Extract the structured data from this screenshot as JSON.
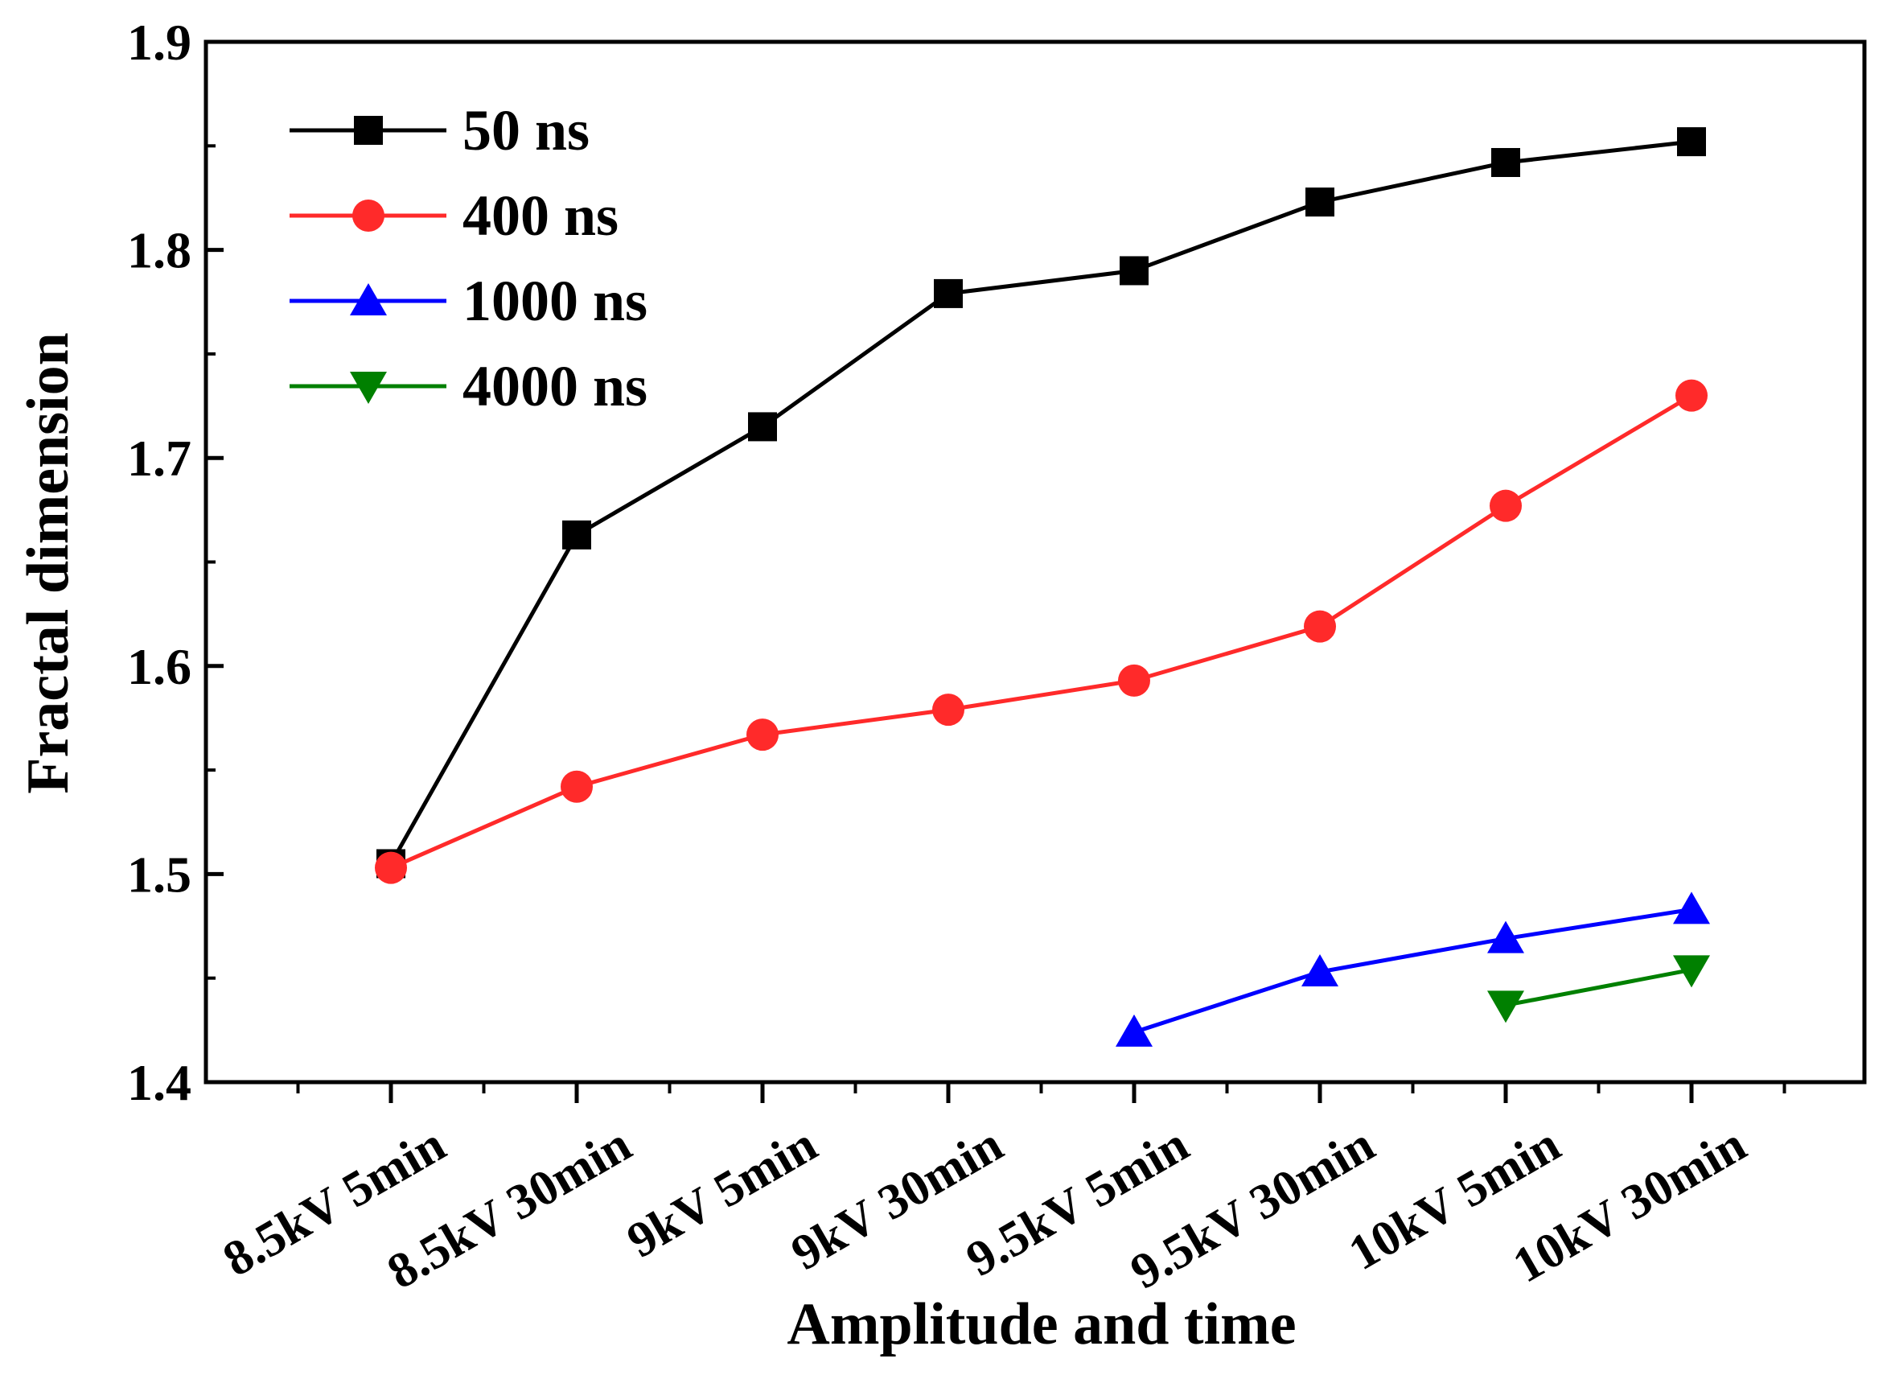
{
  "chart_data": {
    "type": "line",
    "title": "",
    "xlabel": "Amplitude and time",
    "ylabel": "Fractal dimension",
    "categories": [
      "8.5kV 5min",
      "8.5kV 30min",
      "9kV 5min",
      "9kV 30min",
      "9.5kV 5min",
      "9.5kV 30min",
      "10kV 5min",
      "10kV 30min"
    ],
    "ylim": [
      1.4,
      1.9
    ],
    "yticks": [
      "1.4",
      "1.5",
      "1.6",
      "1.7",
      "1.8",
      "1.9"
    ],
    "grid": false,
    "legend_position": "top-left",
    "series": [
      {
        "name": "50 ns",
        "color": "#000000",
        "marker": "square",
        "values": [
          1.505,
          1.663,
          1.715,
          1.779,
          1.79,
          1.823,
          1.842,
          1.852
        ]
      },
      {
        "name": "400 ns",
        "color": "#ff2a2a",
        "marker": "circle",
        "values": [
          1.503,
          1.542,
          1.567,
          1.579,
          1.593,
          1.619,
          1.677,
          1.73
        ]
      },
      {
        "name": "1000 ns",
        "color": "#0000ff",
        "marker": "triangle-up",
        "values": [
          null,
          null,
          null,
          null,
          1.424,
          1.453,
          1.469,
          1.483
        ]
      },
      {
        "name": "4000 ns",
        "color": "#008000",
        "marker": "triangle-down",
        "values": [
          null,
          null,
          null,
          null,
          null,
          null,
          1.437,
          1.454
        ]
      }
    ]
  }
}
